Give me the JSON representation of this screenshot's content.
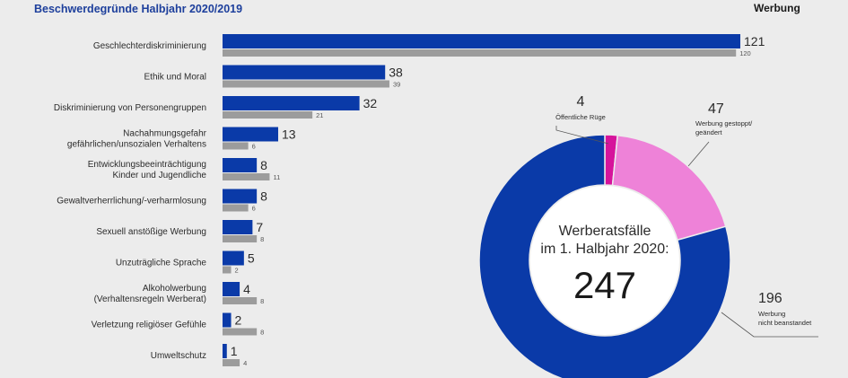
{
  "header": {
    "title": "Beschwerdegründe Halbjahr 2020/2019",
    "logo_text": "Werbung"
  },
  "colors": {
    "bar_2020": "#0a3aa8",
    "bar_2019": "#9c9c9c",
    "donut_blue": "#0a3aa8",
    "donut_pink": "#ee82d8",
    "donut_magenta": "#d6149c"
  },
  "chart_data": [
    {
      "type": "bar",
      "orientation": "horizontal",
      "title": "Beschwerdegründe Halbjahr 2020/2019",
      "categories": [
        [
          "Geschlechterdiskriminierung"
        ],
        [
          "Ethik und Moral"
        ],
        [
          "Diskriminierung von Personengruppen"
        ],
        [
          "Nachahmungsgefahr",
          "gefährlichen/unsozialen Verhaltens"
        ],
        [
          "Entwicklungsbeeinträchtigung",
          "Kinder und Jugendliche"
        ],
        [
          "Gewaltverherrlichung/-verharmlosung"
        ],
        [
          "Sexuell anstößige Werbung"
        ],
        [
          "Unzuträgliche Sprache"
        ],
        [
          "Alkoholwerbung",
          "(Verhaltensregeln Werberat)"
        ],
        [
          "Verletzung religiöser Gefühle"
        ],
        [
          "Umweltschutz"
        ]
      ],
      "series": [
        {
          "values": [
            121,
            38,
            32,
            13,
            8,
            8,
            7,
            5,
            4,
            2,
            1
          ]
        },
        {
          "values": [
            120,
            39,
            21,
            6,
            11,
            6,
            8,
            2,
            8,
            8,
            4
          ]
        }
      ],
      "xlim": [
        0,
        121
      ]
    },
    {
      "type": "pie",
      "variant": "donut",
      "center_label": [
        "Werberatsfälle",
        "im 1. Halbjahr 2020:"
      ],
      "total": 247,
      "slices": [
        {
          "label": [
            "Öffentliche Rüge"
          ],
          "value": 4,
          "color": "#d6149c"
        },
        {
          "label": [
            "Werbung gestoppt/",
            "geändert"
          ],
          "value": 47,
          "color": "#ee82d8"
        },
        {
          "label": [
            "Werbung",
            "nicht beanstandet"
          ],
          "value": 196,
          "color": "#0a3aa8"
        }
      ]
    }
  ]
}
